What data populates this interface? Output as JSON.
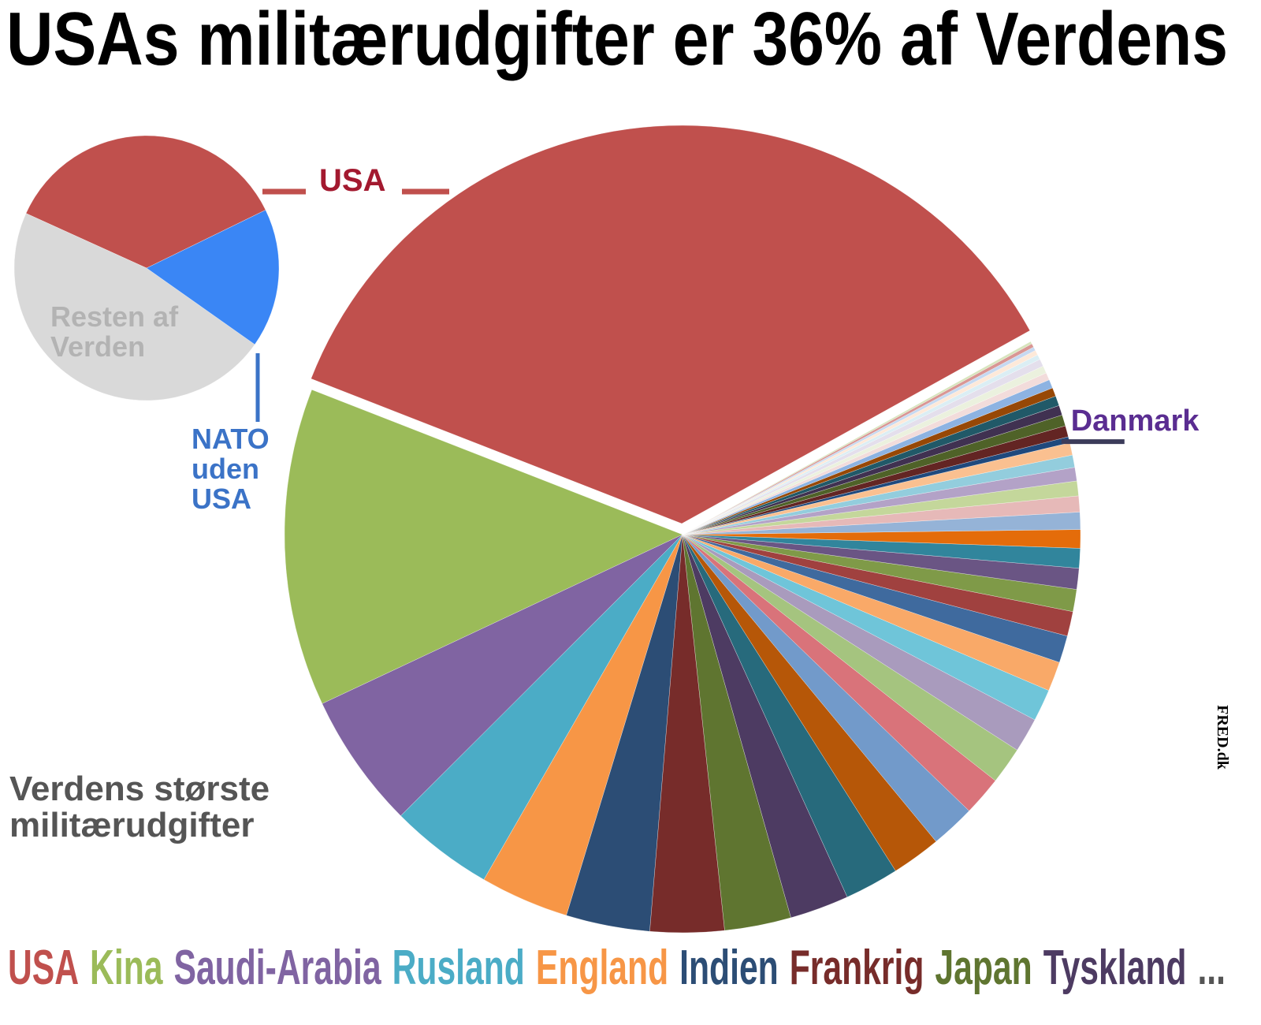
{
  "chart_data": [
    {
      "type": "pie",
      "title": "USAs militærudgifter er 36% af Verdens",
      "subtitle": "Verdens største militærudgifter",
      "watermark": "FRED.dk",
      "categories": [
        null,
        null,
        null,
        null,
        null,
        null,
        null,
        null,
        null,
        null,
        null,
        null,
        null,
        null,
        null,
        null,
        null,
        null,
        null,
        null,
        null,
        null,
        null,
        null,
        null,
        null,
        null,
        null,
        null,
        "Danmark",
        null,
        null,
        null,
        null,
        null,
        null,
        null,
        null,
        null,
        null,
        null,
        null,
        null,
        null
      ],
      "values": [
        36,
        12.9,
        5.5,
        4.2,
        3.6,
        3.4,
        3.0,
        2.7,
        2.4,
        2.2,
        2.0,
        1.8,
        1.6,
        1.5,
        1.4,
        1.3,
        1.2,
        1.1,
        1.0,
        0.9,
        0.85,
        0.8,
        0.75,
        0.7,
        0.65,
        0.6,
        0.55,
        0.5,
        0.5,
        0.25,
        0.45,
        0.45,
        0.4,
        0.4,
        0.35,
        0.35,
        0.3,
        0.3,
        0.3,
        0.2,
        0.2,
        0.15,
        0.15,
        0.1
      ],
      "colors": [
        "#c0504d",
        "#9bbb59",
        "#8064a2",
        "#4bacc6",
        "#f79646",
        "#2c4d75",
        "#772c2a",
        "#5f7530",
        "#4d3b62",
        "#276a7c",
        "#b65708",
        "#729aca",
        "#d9737a",
        "#a5c47f",
        "#a99bbd",
        "#6fc5d9",
        "#f9a968",
        "#3f6a9e",
        "#a0413f",
        "#7f9a48",
        "#6a5584",
        "#31859c",
        "#e46c0a",
        "#95b3d7",
        "#e6b9b8",
        "#c4d79b",
        "#b3a2c7",
        "#93cddd",
        "#fac090",
        "#1f497d",
        "#632523",
        "#4f6228",
        "#403151",
        "#215968",
        "#974806",
        "#8db3e2",
        "#f2dcdb",
        "#ebf1de",
        "#e4dfec",
        "#dbeef4",
        "#fde9d9",
        "#c6d9f1",
        "#d99694",
        "#d7e4bd"
      ],
      "label_color": "#5a2d91",
      "legend": {
        "items": [
          {
            "name": "USA",
            "color": "#c0504d"
          },
          {
            "name": "Kina",
            "color": "#9bbb59"
          },
          {
            "name": "Saudi-Arabia",
            "color": "#8064a2"
          },
          {
            "name": "Rusland",
            "color": "#4bacc6"
          },
          {
            "name": "England",
            "color": "#f79646"
          },
          {
            "name": "Indien",
            "color": "#2c4d75"
          },
          {
            "name": "Frankrig",
            "color": "#772c2a"
          },
          {
            "name": "Japan",
            "color": "#5f7530"
          },
          {
            "name": "Tyskland",
            "color": "#4d3b62"
          }
        ],
        "more": "...",
        "position": "bottom"
      }
    },
    {
      "type": "pie",
      "categories": [
        "USA",
        "Resten af Verden",
        "NATO uden USA"
      ],
      "values": [
        36,
        47,
        17
      ],
      "colors": [
        "#c0504d",
        "#d9d9d9",
        "#3a86f5"
      ],
      "label_colors": [
        "#a3192f",
        "#b3b3b3",
        "#3b73c7"
      ]
    }
  ]
}
